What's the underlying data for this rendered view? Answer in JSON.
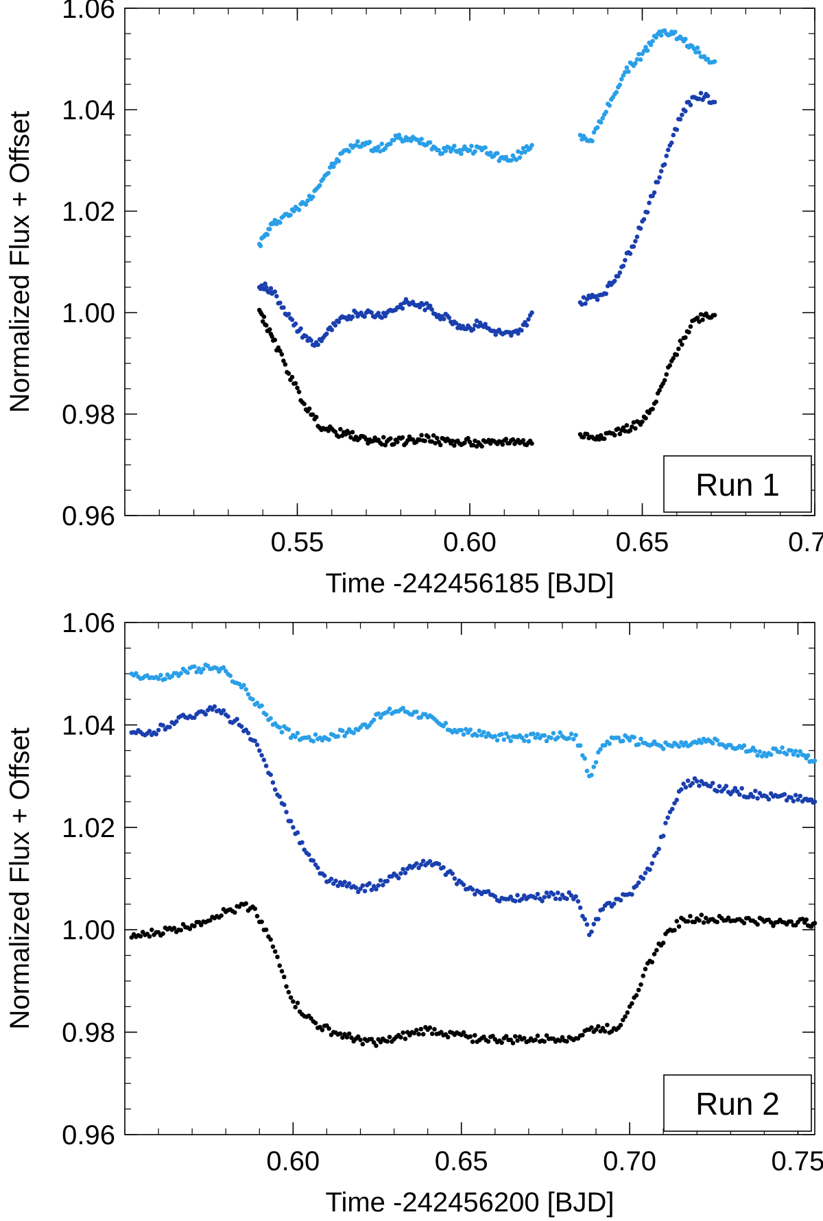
{
  "chart_data": [
    {
      "type": "scatter",
      "legend_box": "Run 1",
      "xlabel": "Time -242456185 [BJD]",
      "ylabel": "Normalized Flux + Offset",
      "xlim": [
        0.5,
        0.7
      ],
      "ylim": [
        0.96,
        1.06
      ],
      "xticks": [
        0.55,
        0.6,
        0.65,
        0.7
      ],
      "xtick_labels": [
        "0.55",
        "0.60",
        "0.65",
        "0.70"
      ],
      "yticks": [
        0.96,
        0.98,
        1.0,
        1.02,
        1.04,
        1.06
      ],
      "ytick_labels": [
        "0.96",
        "0.98",
        "1.00",
        "1.02",
        "1.04",
        "1.06"
      ],
      "grid": false,
      "legend_position": "bottom-right",
      "series": [
        {
          "color": "#2a9fe8",
          "x": [
            0.539,
            0.541,
            0.543,
            0.546,
            0.549,
            0.552,
            0.555,
            0.558,
            0.561,
            0.564,
            0.567,
            0.57,
            0.573,
            0.576,
            0.579,
            0.582,
            0.585,
            0.588,
            0.591,
            0.594,
            0.597,
            0.6,
            0.603,
            0.606,
            0.609,
            0.612,
            0.615,
            0.618,
            0.632,
            0.635,
            0.638,
            0.641,
            0.644,
            0.647,
            0.65,
            0.653,
            0.656,
            0.659,
            0.662,
            0.665,
            0.668,
            0.671
          ],
          "y": [
            1.0135,
            1.0155,
            1.0175,
            1.019,
            1.02,
            1.0215,
            1.024,
            1.027,
            1.0295,
            1.032,
            1.033,
            1.0335,
            1.032,
            1.033,
            1.0345,
            1.034,
            1.034,
            1.0335,
            1.032,
            1.0325,
            1.032,
            1.032,
            1.0325,
            1.0315,
            1.0305,
            1.03,
            1.0315,
            1.033,
            1.035,
            1.034,
            1.0375,
            1.042,
            1.046,
            1.049,
            1.051,
            1.0535,
            1.0555,
            1.055,
            1.0535,
            1.052,
            1.0505,
            1.0495
          ]
        },
        {
          "color": "#1a3fae",
          "x": [
            0.539,
            0.541,
            0.543,
            0.546,
            0.549,
            0.552,
            0.555,
            0.558,
            0.561,
            0.564,
            0.567,
            0.57,
            0.573,
            0.576,
            0.579,
            0.582,
            0.585,
            0.588,
            0.591,
            0.594,
            0.597,
            0.6,
            0.603,
            0.606,
            0.609,
            0.612,
            0.615,
            0.618,
            0.632,
            0.635,
            0.638,
            0.641,
            0.644,
            0.647,
            0.65,
            0.653,
            0.656,
            0.659,
            0.662,
            0.665,
            0.668,
            0.671
          ],
          "y": [
            1.005,
            1.005,
            1.004,
            1.001,
            0.9975,
            0.9955,
            0.9935,
            0.9955,
            0.9975,
            0.999,
            1.0,
            1.0,
            0.9995,
            1.0,
            1.001,
            1.002,
            1.0015,
            1.001,
            0.9995,
            0.999,
            0.9975,
            0.997,
            0.998,
            0.9965,
            0.996,
            0.9955,
            0.9965,
            1.0,
            1.002,
            1.003,
            1.0035,
            1.0055,
            1.009,
            1.013,
            1.018,
            1.023,
            1.029,
            1.035,
            1.04,
            1.0425,
            1.0425,
            1.0415
          ]
        },
        {
          "color": "#000000",
          "x": [
            0.539,
            0.541,
            0.543,
            0.546,
            0.549,
            0.552,
            0.555,
            0.558,
            0.561,
            0.564,
            0.567,
            0.57,
            0.573,
            0.576,
            0.579,
            0.582,
            0.585,
            0.588,
            0.591,
            0.594,
            0.597,
            0.6,
            0.603,
            0.606,
            0.609,
            0.612,
            0.615,
            0.618,
            0.632,
            0.635,
            0.638,
            0.641,
            0.644,
            0.647,
            0.65,
            0.653,
            0.656,
            0.659,
            0.662,
            0.665,
            0.668,
            0.671
          ],
          "y": [
            1.0005,
            0.9975,
            0.9945,
            0.9905,
            0.986,
            0.982,
            0.979,
            0.977,
            0.9765,
            0.976,
            0.9755,
            0.975,
            0.9748,
            0.9746,
            0.9745,
            0.9748,
            0.975,
            0.9755,
            0.9745,
            0.9748,
            0.9742,
            0.9745,
            0.974,
            0.9742,
            0.9745,
            0.9748,
            0.9745,
            0.9742,
            0.976,
            0.9755,
            0.9758,
            0.9762,
            0.9768,
            0.9775,
            0.9785,
            0.981,
            0.986,
            0.991,
            0.995,
            0.9985,
            0.9995,
            0.9995
          ]
        }
      ]
    },
    {
      "type": "scatter",
      "legend_box": "Run 2",
      "xlabel": "Time -242456200 [BJD]",
      "ylabel": "Normalized Flux + Offset",
      "xlim": [
        0.55,
        0.755
      ],
      "ylim": [
        0.96,
        1.06
      ],
      "xticks": [
        0.6,
        0.65,
        0.7,
        0.75
      ],
      "xtick_labels": [
        "0.60",
        "0.65",
        "0.70",
        "0.75"
      ],
      "yticks": [
        0.96,
        0.98,
        1.0,
        1.02,
        1.04,
        1.06
      ],
      "ytick_labels": [
        "0.96",
        "0.98",
        "1.00",
        "1.02",
        "1.04",
        "1.06"
      ],
      "grid": false,
      "legend_position": "bottom-right",
      "series": [
        {
          "color": "#2a9fe8",
          "x": [
            0.552,
            0.556,
            0.56,
            0.564,
            0.568,
            0.572,
            0.576,
            0.58,
            0.584,
            0.588,
            0.592,
            0.596,
            0.6,
            0.604,
            0.608,
            0.612,
            0.616,
            0.62,
            0.624,
            0.628,
            0.632,
            0.636,
            0.64,
            0.644,
            0.648,
            0.652,
            0.656,
            0.66,
            0.664,
            0.668,
            0.672,
            0.676,
            0.68,
            0.684,
            0.688,
            0.692,
            0.696,
            0.7,
            0.704,
            0.708,
            0.712,
            0.716,
            0.72,
            0.724,
            0.728,
            0.732,
            0.736,
            0.74,
            0.744,
            0.748,
            0.752,
            0.755
          ],
          "y": [
            1.05,
            1.0495,
            1.049,
            1.0495,
            1.0505,
            1.051,
            1.051,
            1.0505,
            1.048,
            1.045,
            1.042,
            1.0395,
            1.038,
            1.0375,
            1.0375,
            1.038,
            1.0385,
            1.0395,
            1.041,
            1.0425,
            1.043,
            1.0425,
            1.0415,
            1.04,
            1.039,
            1.0385,
            1.038,
            1.0378,
            1.0376,
            1.0375,
            1.0375,
            1.0376,
            1.0378,
            1.038,
            1.03,
            1.036,
            1.0375,
            1.037,
            1.0365,
            1.0362,
            1.036,
            1.036,
            1.0365,
            1.0368,
            1.036,
            1.0355,
            1.035,
            1.0345,
            1.0348,
            1.035,
            1.034,
            1.033
          ]
        },
        {
          "color": "#1a3fae",
          "x": [
            0.552,
            0.556,
            0.56,
            0.564,
            0.568,
            0.572,
            0.576,
            0.58,
            0.584,
            0.588,
            0.592,
            0.596,
            0.6,
            0.604,
            0.608,
            0.612,
            0.616,
            0.62,
            0.624,
            0.628,
            0.632,
            0.636,
            0.64,
            0.644,
            0.648,
            0.652,
            0.656,
            0.66,
            0.664,
            0.668,
            0.672,
            0.676,
            0.68,
            0.684,
            0.688,
            0.692,
            0.696,
            0.7,
            0.704,
            0.708,
            0.712,
            0.716,
            0.72,
            0.724,
            0.728,
            0.732,
            0.736,
            0.74,
            0.744,
            0.748,
            0.752,
            0.755
          ],
          "y": [
            1.0385,
            1.038,
            1.039,
            1.0405,
            1.0415,
            1.0425,
            1.043,
            1.042,
            1.04,
            1.037,
            1.032,
            1.026,
            1.02,
            1.015,
            1.011,
            1.009,
            1.0085,
            1.008,
            1.0085,
            1.0095,
            1.011,
            1.0125,
            1.013,
            1.012,
            1.01,
            1.008,
            1.007,
            1.0065,
            1.006,
            1.006,
            1.0062,
            1.0065,
            1.0068,
            1.0065,
            0.999,
            1.004,
            1.006,
            1.007,
            1.01,
            1.015,
            1.023,
            1.0285,
            1.029,
            1.028,
            1.0275,
            1.027,
            1.0265,
            1.0262,
            1.026,
            1.0258,
            1.0255,
            1.025
          ]
        },
        {
          "color": "#000000",
          "x": [
            0.552,
            0.556,
            0.56,
            0.564,
            0.568,
            0.572,
            0.576,
            0.58,
            0.584,
            0.588,
            0.592,
            0.596,
            0.6,
            0.604,
            0.608,
            0.612,
            0.616,
            0.62,
            0.624,
            0.628,
            0.632,
            0.636,
            0.64,
            0.644,
            0.648,
            0.652,
            0.656,
            0.66,
            0.664,
            0.668,
            0.672,
            0.676,
            0.68,
            0.684,
            0.688,
            0.692,
            0.696,
            0.7,
            0.704,
            0.708,
            0.712,
            0.716,
            0.72,
            0.724,
            0.728,
            0.732,
            0.736,
            0.74,
            0.744,
            0.748,
            0.752,
            0.755
          ],
          "y": [
            0.9985,
            0.999,
            0.9995,
            1.0,
            1.0005,
            1.0015,
            1.0025,
            1.0035,
            1.0045,
            1.0045,
            1.0,
            0.993,
            0.986,
            0.983,
            0.981,
            0.98,
            0.979,
            0.9785,
            0.978,
            0.9782,
            0.979,
            0.9798,
            0.9805,
            0.98,
            0.9795,
            0.979,
            0.9788,
            0.9786,
            0.9785,
            0.9786,
            0.9785,
            0.9787,
            0.979,
            0.9788,
            0.9805,
            0.9808,
            0.9805,
            0.985,
            0.991,
            0.996,
            1.0,
            1.002,
            1.0022,
            1.002,
            1.0018,
            1.002,
            1.0018,
            1.0016,
            1.0015,
            1.0016,
            1.0014,
            1.0013
          ]
        }
      ]
    }
  ]
}
